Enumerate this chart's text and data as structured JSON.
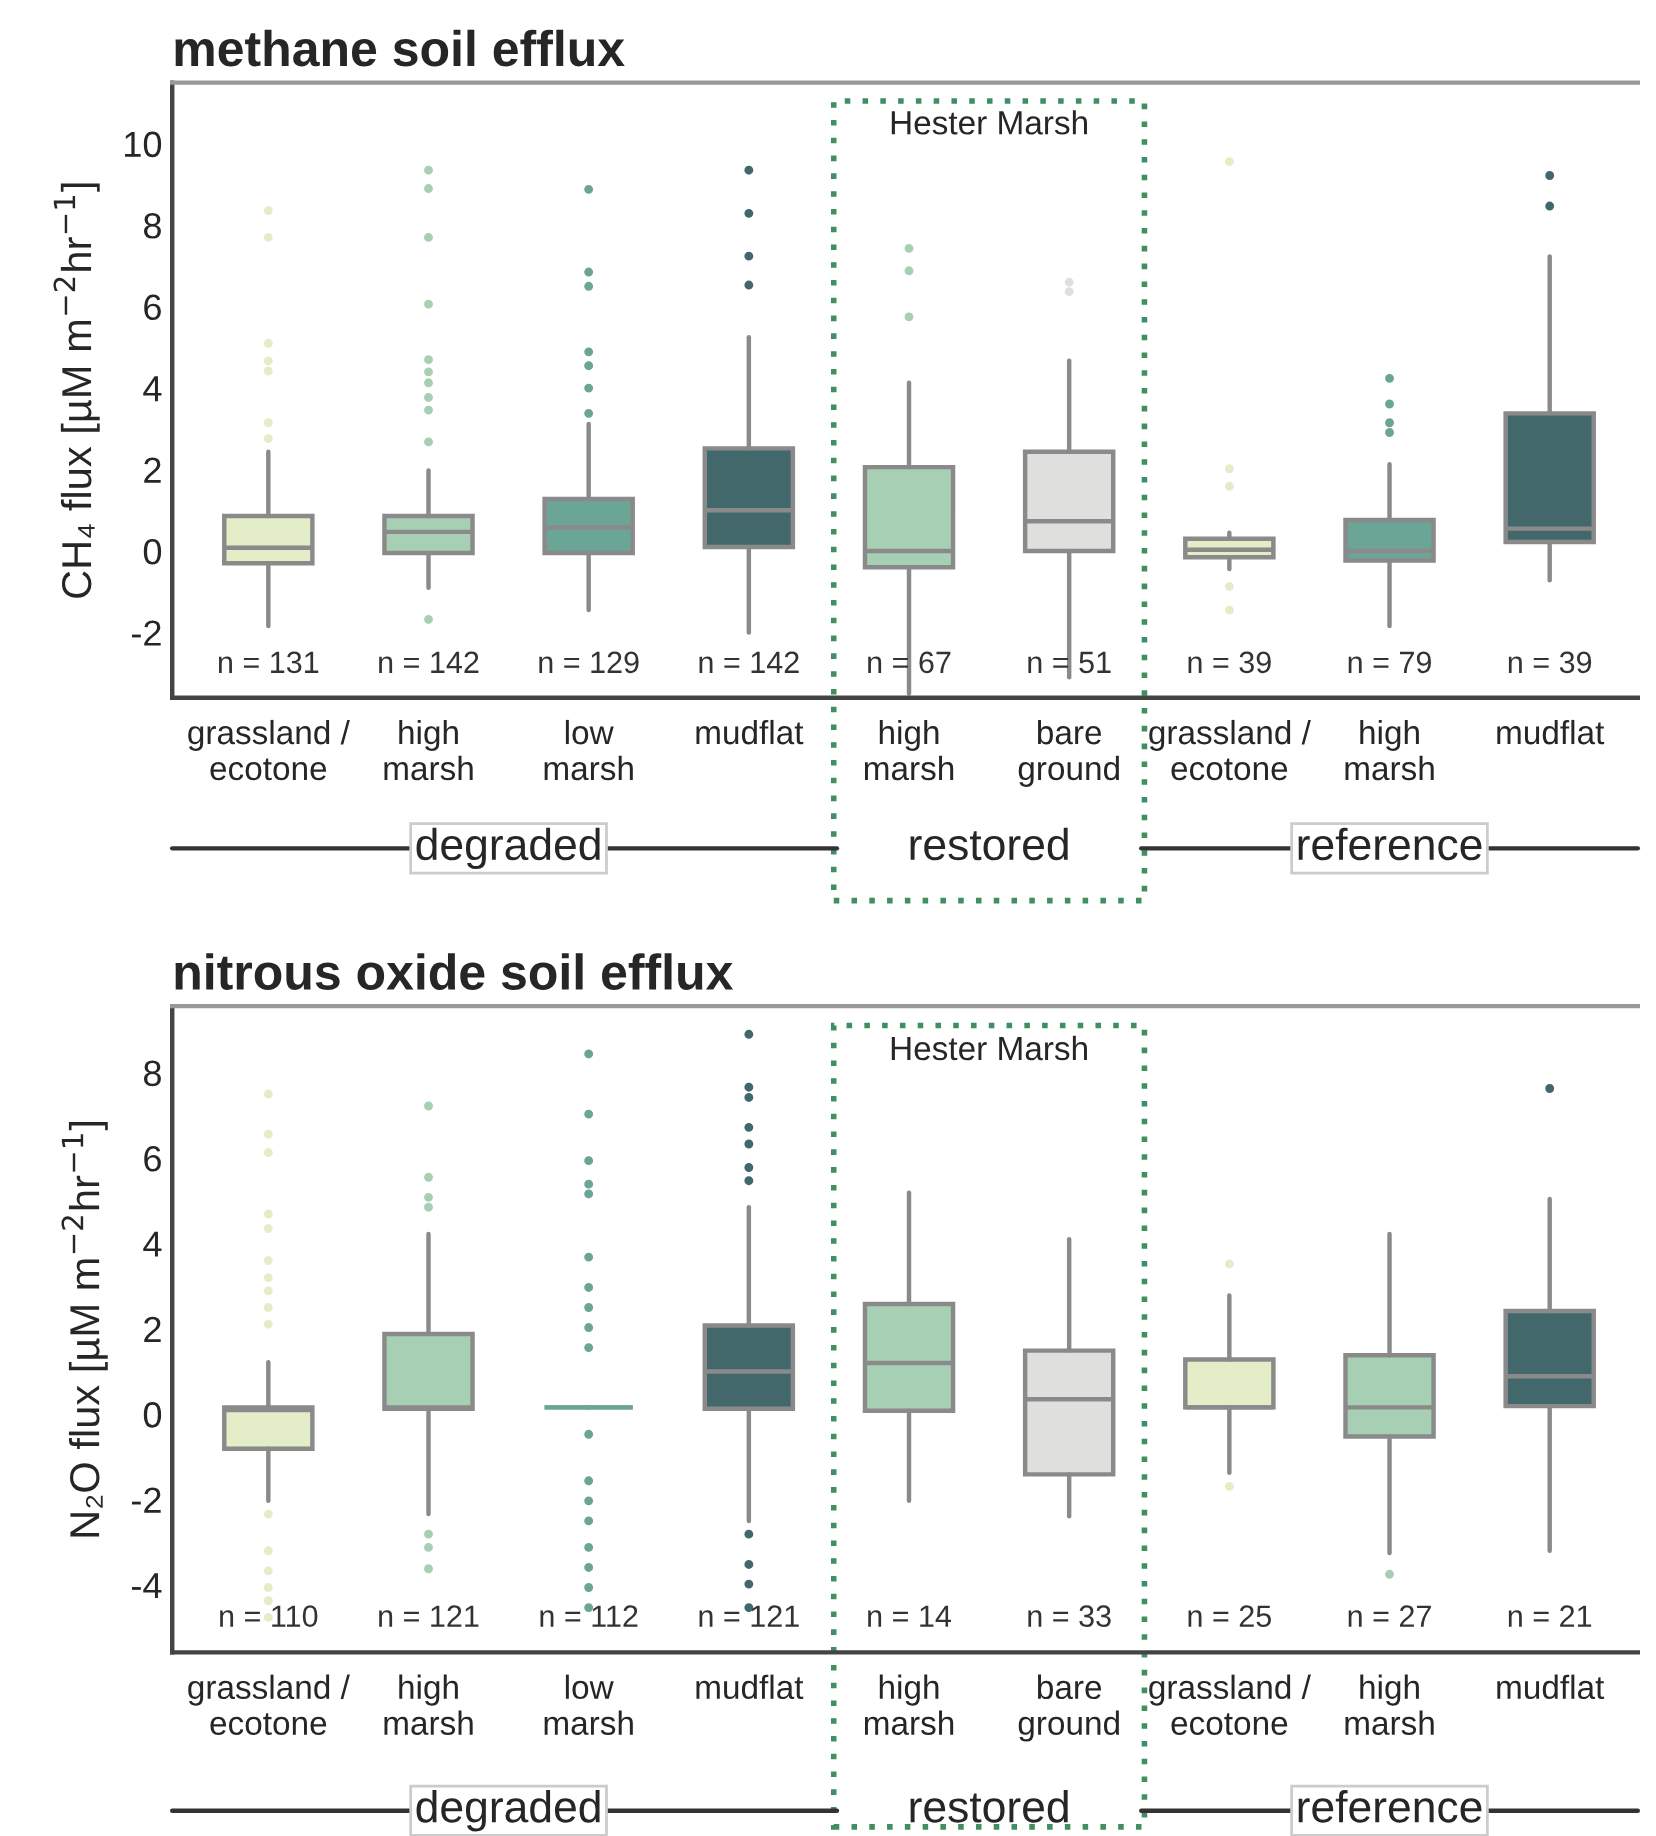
{
  "chart_data": [
    {
      "type": "box",
      "title": "methane soil efflux",
      "ylabel": "CH₄ flux [µM m$^{−2}$hr$^{−1}$]",
      "categories": [
        "grassland /\necotone",
        "high\nmarsh",
        "low\nmarsh",
        "mudflat",
        "high\nmarsh",
        "bare\nground",
        "grassland /\necotone",
        "high\nmarsh",
        "mudflat"
      ],
      "colors": [
        "#e3edc8",
        "#a7cfb4",
        "#6aa596",
        "#42686c",
        "#a7cfb4",
        "#dfe0de",
        "#e3edc8",
        "#6aa596",
        "#42686c"
      ],
      "ylim": [
        -3.6,
        11.5
      ],
      "yticks": [
        -2,
        0,
        2,
        4,
        6,
        8,
        10
      ],
      "boxes": [
        {
          "low": -1.84,
          "q1": -0.3,
          "median": 0.08,
          "q3": 0.86,
          "high": 2.44,
          "outliers": [
            8.36,
            7.7,
            5.1,
            4.67,
            4.42,
            3.15,
            2.76
          ]
        },
        {
          "low": -0.9,
          "q1": -0.05,
          "median": 0.47,
          "q3": 0.86,
          "high": 1.98,
          "outliers": [
            9.35,
            8.9,
            7.7,
            6.06,
            4.7,
            4.4,
            4.13,
            3.77,
            3.46,
            2.68,
            -1.68
          ]
        },
        {
          "low": -1.45,
          "q1": -0.05,
          "median": 0.58,
          "q3": 1.28,
          "high": 3.12,
          "outliers": [
            8.88,
            6.85,
            6.5,
            4.89,
            4.55,
            4.0,
            3.38
          ]
        },
        {
          "low": -2.0,
          "q1": 0.1,
          "median": 1.0,
          "q3": 2.52,
          "high": 5.25,
          "outliers": [
            9.35,
            8.29,
            7.24,
            6.53
          ]
        },
        {
          "low": -3.5,
          "q1": -0.4,
          "median": 0.0,
          "q3": 2.06,
          "high": 4.13,
          "outliers": [
            7.43,
            6.88,
            5.75
          ]
        },
        {
          "low": -3.1,
          "q1": 0.0,
          "median": 0.73,
          "q3": 2.44,
          "high": 4.67,
          "outliers": [
            6.6,
            6.37
          ]
        },
        {
          "low": -0.44,
          "q1": -0.15,
          "median": 0.03,
          "q3": 0.3,
          "high": 0.45,
          "outliers": [
            9.56,
            2.02,
            1.59,
            -0.87,
            -1.45
          ]
        },
        {
          "low": -1.84,
          "q1": -0.23,
          "median": 0.0,
          "q3": 0.76,
          "high": 2.13,
          "outliers": [
            4.24,
            3.61,
            3.15,
            2.91
          ]
        },
        {
          "low": -0.72,
          "q1": 0.22,
          "median": 0.55,
          "q3": 3.38,
          "high": 7.23,
          "outliers": [
            9.22,
            8.47
          ]
        }
      ],
      "annotations": [
        "n = 131",
        "n = 142",
        "n = 129",
        "n = 142",
        "n = 67",
        "n = 51",
        "n = 39",
        "n = 79",
        "n = 39",
        "degraded",
        "restored",
        "reference",
        "Hester Marsh"
      ]
    },
    {
      "type": "box",
      "title": "nitrous oxide soil efflux",
      "ylabel": "N₂O flux [µM m$^{−2}$hr$^{−1}$]",
      "categories": [
        "grassland /\necotone",
        "high\nmarsh",
        "low\nmarsh",
        "mudflat",
        "high\nmarsh",
        "bare\nground",
        "grassland /\necotone",
        "high\nmarsh",
        "mudflat"
      ],
      "colors": [
        "#e3edc8",
        "#a7cfb4",
        "#6aa596",
        "#42686c",
        "#a7cfb4",
        "#dfe0de",
        "#e3edc8",
        "#a7cfb4",
        "#42686c"
      ],
      "ylim": [
        -5.58,
        9.56
      ],
      "yticks": [
        -4,
        -2,
        0,
        2,
        4,
        6,
        8
      ],
      "boxes": [
        {
          "low": -2.03,
          "q1": -0.81,
          "median": 0.1,
          "q3": 0.16,
          "high": 1.22,
          "outliers": [
            7.5,
            6.56,
            6.13,
            4.69,
            4.35,
            3.6,
            3.2,
            2.89,
            2.5,
            2.11,
            -2.34,
            -3.2,
            -3.67,
            -4.06,
            -4.37,
            -4.76
          ]
        },
        {
          "low": -2.34,
          "q1": 0.13,
          "median": 0.16,
          "q3": 1.88,
          "high": 4.22,
          "outliers": [
            7.22,
            5.55,
            5.08,
            4.85,
            -2.81,
            -3.12,
            -3.62
          ]
        },
        {
          "low": 0.16,
          "q1": 0.16,
          "median": 0.16,
          "q3": 0.16,
          "high": 0.16,
          "outliers": [
            8.44,
            7.03,
            5.94,
            5.39,
            5.16,
            3.68,
            2.97,
            2.5,
            2.03,
            1.56,
            -0.47,
            -1.56,
            -2.03,
            -2.5,
            -3.12,
            -3.59,
            -4.06,
            -4.53
          ]
        },
        {
          "low": -2.5,
          "q1": 0.13,
          "median": 1.0,
          "q3": 2.08,
          "high": 4.85,
          "outliers": [
            8.9,
            7.66,
            7.42,
            6.72,
            6.33,
            5.78,
            5.47,
            -2.81,
            -3.52,
            -3.98,
            -4.53
          ]
        },
        {
          "low": -2.03,
          "q1": 0.08,
          "median": 1.2,
          "q3": 2.58,
          "high": 5.19
        },
        {
          "low": -2.39,
          "q1": -1.41,
          "median": 0.35,
          "q3": 1.49,
          "high": 4.1
        },
        {
          "low": -1.37,
          "q1": 0.16,
          "median": 0.16,
          "q3": 1.28,
          "high": 2.78,
          "outliers": [
            3.52,
            -1.69
          ]
        },
        {
          "low": -3.25,
          "q1": -0.52,
          "median": 0.16,
          "q3": 1.38,
          "high": 4.22,
          "outliers": [
            -3.75
          ]
        },
        {
          "low": -3.2,
          "q1": 0.19,
          "median": 0.89,
          "q3": 2.42,
          "high": 5.04,
          "outliers": [
            7.63
          ]
        }
      ],
      "annotations": [
        "n = 110",
        "n = 121",
        "n = 112",
        "n = 121",
        "n = 14",
        "n = 33",
        "n = 25",
        "n = 27",
        "n = 21",
        "degraded",
        "restored",
        "reference",
        "Hester Marsh"
      ]
    }
  ]
}
